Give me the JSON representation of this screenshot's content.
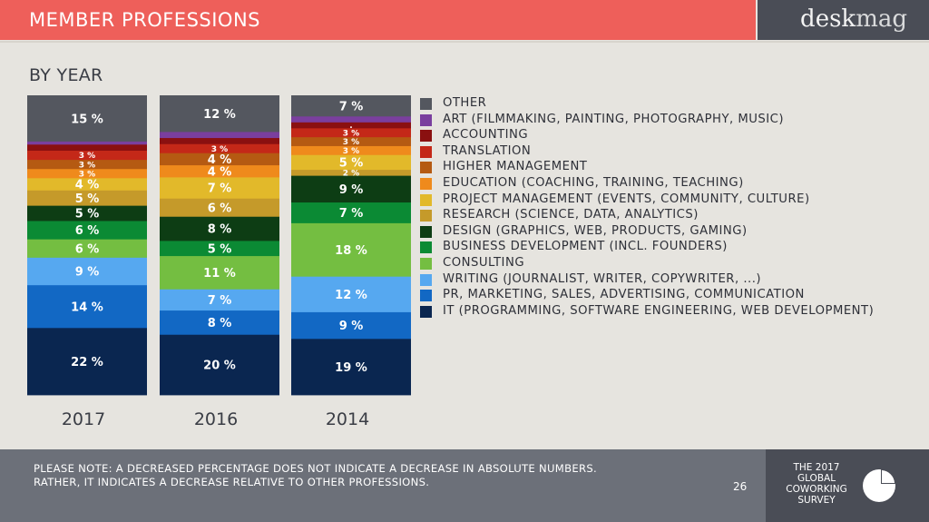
{
  "header": {
    "title": "MEMBER PROFESSIONS",
    "logo_main": "desk",
    "logo_light": "mag"
  },
  "subtitle": "BY YEAR",
  "legend": [
    {
      "label": "OTHER",
      "color": "#54575f"
    },
    {
      "label": "ART (FILMMAKING, PAINTING, PHOTOGRAPHY, MUSIC)",
      "color": "#7a3f9e"
    },
    {
      "label": "ACCOUNTING",
      "color": "#8a1010"
    },
    {
      "label": "TRANSLATION",
      "color": "#c42818"
    },
    {
      "label": "HIGHER MANAGEMENT",
      "color": "#b55a12"
    },
    {
      "label": "EDUCATION (COACHING, TRAINING, TEACHING)",
      "color": "#ef8a1c"
    },
    {
      "label": "PROJECT MANAGEMENT (EVENTS, COMMUNITY, CULTURE)",
      "color": "#e2b92a"
    },
    {
      "label": "RESEARCH (SCIENCE, DATA, ANALYTICS)",
      "color": "#c59a2a"
    },
    {
      "label": "DESIGN (GRAPHICS, WEB, PRODUCTS, GAMING)",
      "color": "#0d3d14"
    },
    {
      "label": "BUSINESS DEVELOPMENT (INCL. FOUNDERS)",
      "color": "#0b8a34"
    },
    {
      "label": "CONSULTING",
      "color": "#74be41"
    },
    {
      "label": "WRITING (JOURNALIST, WRITER, COPYWRITER, ...)",
      "color": "#56a8f0"
    },
    {
      "label": "PR, MARKETING, SALES, ADVERTISING, COMMUNICATION",
      "color": "#1268c4"
    },
    {
      "label": "IT (PROGRAMMING, SOFTWARE ENGINEERING, WEB DEVELOPMENT)",
      "color": "#0a2650"
    }
  ],
  "chart_data": {
    "type": "bar",
    "stacked": true,
    "categories": [
      "2017",
      "2016",
      "2014"
    ],
    "series": [
      {
        "name": "IT (PROGRAMMING, SOFTWARE ENGINEERING, WEB DEVELOPMENT)",
        "values": [
          22,
          20,
          19
        ],
        "labels": [
          "22 %",
          "20 %",
          "19 %"
        ]
      },
      {
        "name": "PR, MARKETING, SALES, ADVERTISING, COMMUNICATION",
        "values": [
          14,
          8,
          9
        ],
        "labels": [
          "14 %",
          "8 %",
          "9 %"
        ]
      },
      {
        "name": "WRITING (JOURNALIST, WRITER, COPYWRITER, ...)",
        "values": [
          9,
          7,
          12
        ],
        "labels": [
          "9 %",
          "7 %",
          "12 %"
        ]
      },
      {
        "name": "CONSULTING",
        "values": [
          6,
          11,
          18
        ],
        "labels": [
          "6 %",
          "11 %",
          "18 %"
        ]
      },
      {
        "name": "BUSINESS DEVELOPMENT (INCL. FOUNDERS)",
        "values": [
          6,
          5,
          7
        ],
        "labels": [
          "6 %",
          "5 %",
          "7 %"
        ]
      },
      {
        "name": "DESIGN (GRAPHICS, WEB, PRODUCTS, GAMING)",
        "values": [
          5,
          8,
          9
        ],
        "labels": [
          "5 %",
          "8 %",
          "9 %"
        ]
      },
      {
        "name": "RESEARCH (SCIENCE, DATA, ANALYTICS)",
        "values": [
          5,
          6,
          2
        ],
        "labels": [
          "5 %",
          "6 %",
          "2 %"
        ]
      },
      {
        "name": "PROJECT MANAGEMENT (EVENTS, COMMUNITY, CULTURE)",
        "values": [
          4,
          7,
          5
        ],
        "labels": [
          "4 %",
          "7 %",
          "5 %"
        ]
      },
      {
        "name": "EDUCATION (COACHING, TRAINING, TEACHING)",
        "values": [
          3,
          4,
          3
        ],
        "labels": [
          "3 %",
          "4 %",
          "3 %"
        ]
      },
      {
        "name": "HIGHER MANAGEMENT",
        "values": [
          3,
          4,
          3
        ],
        "labels": [
          "3 %",
          "4 %",
          "3 %"
        ]
      },
      {
        "name": "TRANSLATION",
        "values": [
          3,
          3,
          3
        ],
        "labels": [
          "3 %",
          "3 %",
          "3 %"
        ]
      },
      {
        "name": "ACCOUNTING",
        "values": [
          2,
          2,
          2
        ],
        "labels": [
          "",
          "",
          "."
        ]
      },
      {
        "name": "ART (FILMMAKING, PAINTING, PHOTOGRAPHY, MUSIC)",
        "values": [
          1,
          2,
          2
        ],
        "labels": [
          "",
          "",
          ""
        ]
      },
      {
        "name": "OTHER",
        "values": [
          15,
          12,
          7
        ],
        "labels": [
          "15 %",
          "12 %",
          "7 %"
        ]
      }
    ],
    "ylim": [
      0,
      100
    ],
    "legend_position": "right"
  },
  "footer": {
    "note": "PLEASE NOTE: A DECREASED PERCENTAGE DOES NOT INDICATE A DECREASE IN ABSOLUTE NUMBERS. RATHER, IT INDICATES A DECREASE RELATIVE TO OTHER PROFESSIONS.",
    "page": "26",
    "survey": "THE 2017 GLOBAL COWORKING SURVEY"
  }
}
